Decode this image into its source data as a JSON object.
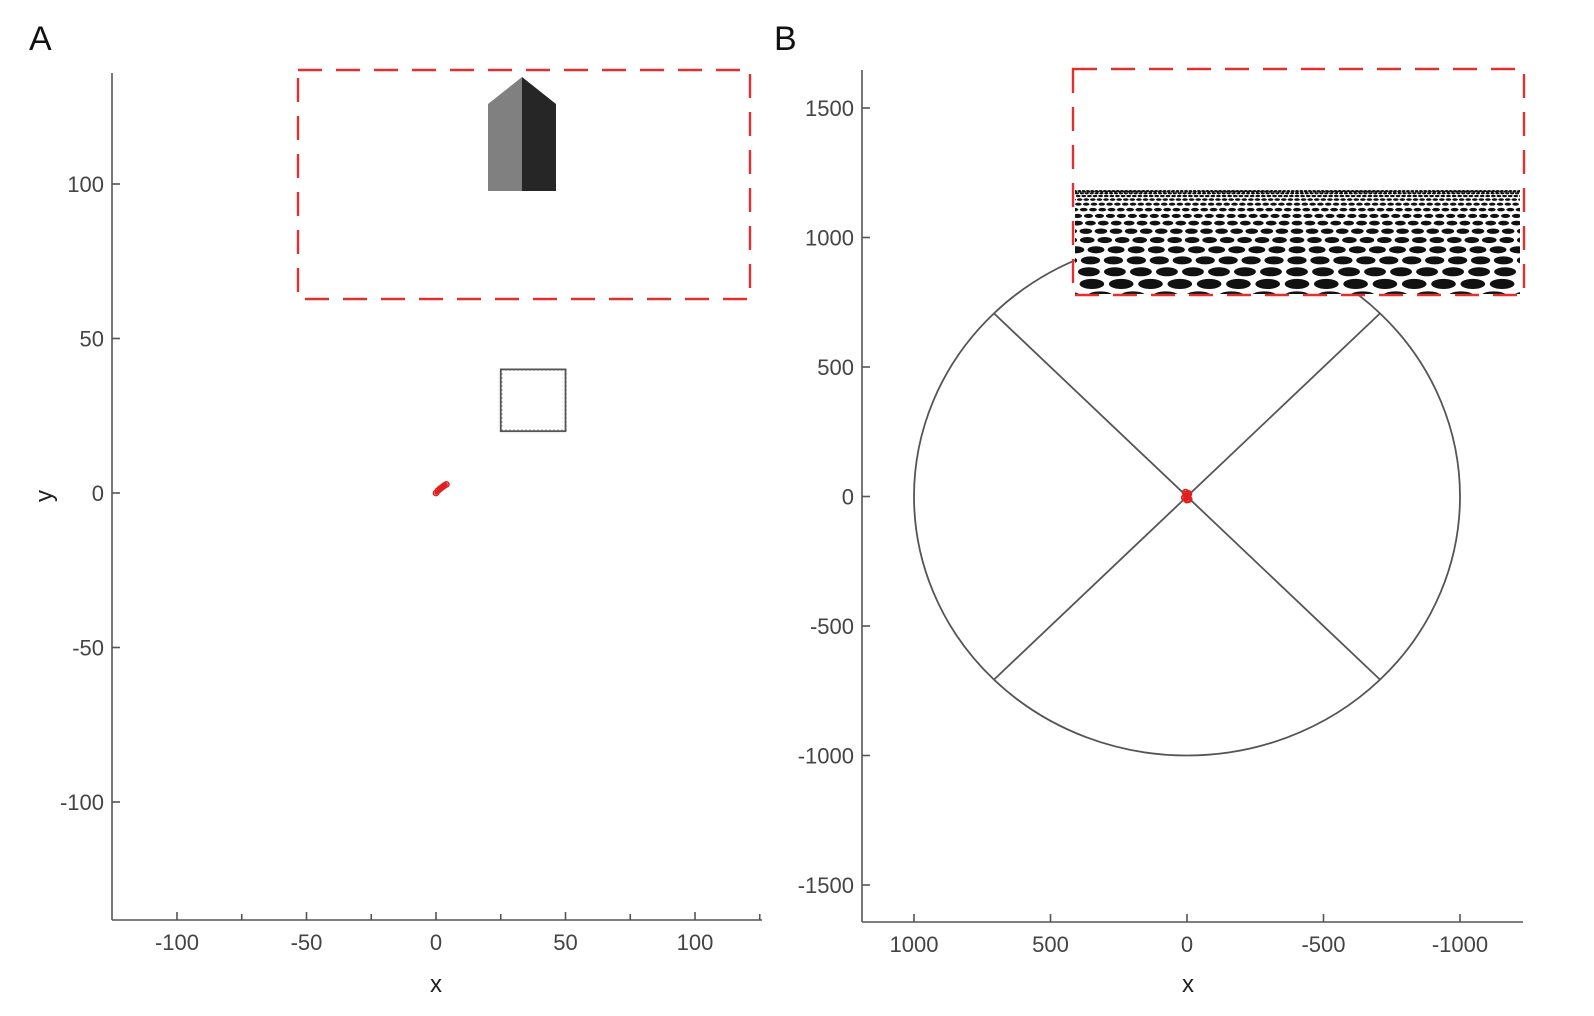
{
  "chart_data": [
    {
      "panel": "A",
      "type": "scatter",
      "xlabel": "x",
      "ylabel": "y",
      "xlim": [
        -125,
        125
      ],
      "ylim": [
        -135,
        135
      ],
      "xticks": [
        -100,
        -50,
        0,
        50,
        100
      ],
      "xtick_labels": [
        "-100",
        "-50",
        "0",
        "50",
        "100"
      ],
      "xminor_ticks": [
        -75,
        -25,
        25,
        75,
        125
      ],
      "yticks": [
        -100,
        -50,
        0,
        50,
        100
      ],
      "ytick_labels": [
        "-100",
        "-50",
        "0",
        "50",
        "100"
      ],
      "grid": false,
      "legend": "none",
      "square_object": {
        "x_min": 25,
        "x_max": 50,
        "y_min": 20,
        "y_max": 40,
        "color": "#555555"
      },
      "trajectory_points": [
        [
          0,
          0
        ],
        [
          0.8,
          0.8
        ],
        [
          1.6,
          1.4
        ],
        [
          2.4,
          1.9
        ],
        [
          3.2,
          2.4
        ],
        [
          4.0,
          2.8
        ]
      ],
      "trajectory_color": "#e02020",
      "inset_color": "#e03030"
    },
    {
      "panel": "B",
      "type": "scatter",
      "xlabel": "x",
      "ylabel": "",
      "xlim": [
        1250,
        -1250
      ],
      "x_axis_reversed": true,
      "ylim": [
        -1650,
        1650
      ],
      "xticks": [
        1000,
        500,
        0,
        -500,
        -1000
      ],
      "xtick_labels": [
        "1000",
        "500",
        "0",
        "-500",
        "-1000"
      ],
      "yticks": [
        -1500,
        -1000,
        -500,
        0,
        500,
        1000,
        1500
      ],
      "ytick_labels": [
        "-1500",
        "-1000",
        "-500",
        "0",
        "500",
        "1000",
        "1500"
      ],
      "grid": false,
      "legend": "none",
      "arena": {
        "shape": "circle",
        "center": [
          0,
          0
        ],
        "radius": 1000,
        "color": "#555555"
      },
      "arena_dividers": [
        [
          [
            707,
            707
          ],
          [
            -707,
            -707
          ]
        ],
        [
          [
            -707,
            707
          ],
          [
            707,
            -707
          ]
        ]
      ],
      "trajectory_points": [
        [
          0,
          0
        ],
        [
          5,
          15
        ],
        [
          -5,
          10
        ],
        [
          8,
          -5
        ],
        [
          -6,
          -10
        ],
        [
          0,
          -12
        ]
      ],
      "trajectory_color": "#e02020",
      "inset_color": "#e03030"
    }
  ]
}
